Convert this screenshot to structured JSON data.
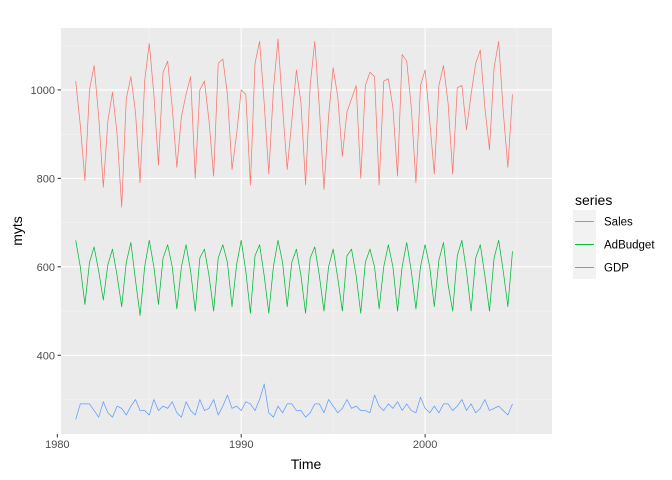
{
  "chart_data": {
    "type": "line",
    "title": "",
    "xlabel": "Time",
    "ylabel": "myts",
    "xlim": [
      1980.2,
      2006.9
    ],
    "ylim": [
      222,
      1140
    ],
    "x_ticks": [
      1980,
      1990,
      2000
    ],
    "x_tick_labels": [
      "1980",
      "1990",
      "2000"
    ],
    "y_ticks": [
      400,
      600,
      800,
      1000
    ],
    "y_tick_labels": [
      "400",
      "600",
      "800",
      "1000"
    ],
    "x_start": 1981.0,
    "x_step": 0.25,
    "legend": {
      "title": "series",
      "position": "right"
    },
    "series": [
      {
        "name": "Sales",
        "color": "#F8766D",
        "values": [
          1020,
          920,
          795,
          1000,
          1055,
          940,
          780,
          930,
          995,
          900,
          735,
          980,
          1030,
          950,
          790,
          1020,
          1105,
          990,
          830,
          1040,
          1065,
          960,
          825,
          940,
          990,
          1030,
          800,
          1000,
          1020,
          930,
          805,
          1060,
          1070,
          990,
          820,
          900,
          1000,
          990,
          785,
          1060,
          1110,
          970,
          810,
          1000,
          1115,
          960,
          820,
          930,
          1045,
          970,
          785,
          1010,
          1110,
          960,
          775,
          940,
          1050,
          985,
          850,
          950,
          980,
          1010,
          800,
          1010,
          1040,
          1030,
          785,
          1020,
          1025,
          960,
          805,
          1080,
          1065,
          960,
          790,
          1010,
          1045,
          930,
          810,
          1010,
          1055,
          970,
          810,
          1005,
          1010,
          910,
          990,
          1060,
          1090,
          960,
          865,
          1050,
          1110,
          950,
          825,
          990
        ]
      },
      {
        "name": "AdBudget",
        "color": "#00BA38",
        "values": [
          660,
          600,
          515,
          610,
          645,
          590,
          525,
          605,
          640,
          580,
          510,
          610,
          655,
          570,
          490,
          600,
          660,
          600,
          515,
          620,
          650,
          600,
          505,
          600,
          650,
          590,
          500,
          620,
          640,
          580,
          500,
          620,
          650,
          610,
          510,
          605,
          660,
          590,
          495,
          625,
          650,
          580,
          495,
          600,
          660,
          610,
          510,
          610,
          640,
          580,
          495,
          620,
          645,
          580,
          500,
          600,
          640,
          575,
          500,
          625,
          640,
          580,
          495,
          610,
          640,
          600,
          505,
          600,
          650,
          600,
          500,
          600,
          655,
          590,
          505,
          600,
          650,
          600,
          510,
          615,
          655,
          560,
          500,
          625,
          660,
          590,
          500,
          620,
          650,
          580,
          500,
          620,
          660,
          590,
          510,
          635
        ]
      },
      {
        "name": "GDP",
        "color": "#619CFF",
        "values": [
          255,
          290,
          290,
          290,
          275,
          260,
          295,
          270,
          260,
          285,
          280,
          265,
          285,
          300,
          275,
          275,
          265,
          300,
          275,
          285,
          280,
          295,
          270,
          260,
          295,
          275,
          265,
          300,
          275,
          280,
          300,
          265,
          285,
          310,
          280,
          285,
          275,
          295,
          290,
          275,
          300,
          335,
          270,
          260,
          285,
          270,
          290,
          290,
          275,
          275,
          260,
          270,
          290,
          290,
          270,
          300,
          285,
          270,
          280,
          300,
          280,
          285,
          275,
          275,
          270,
          310,
          285,
          275,
          290,
          280,
          295,
          275,
          290,
          275,
          270,
          305,
          280,
          270,
          285,
          270,
          290,
          290,
          275,
          285,
          300,
          275,
          290,
          270,
          280,
          300,
          275,
          280,
          285,
          275,
          265,
          290
        ]
      }
    ]
  }
}
